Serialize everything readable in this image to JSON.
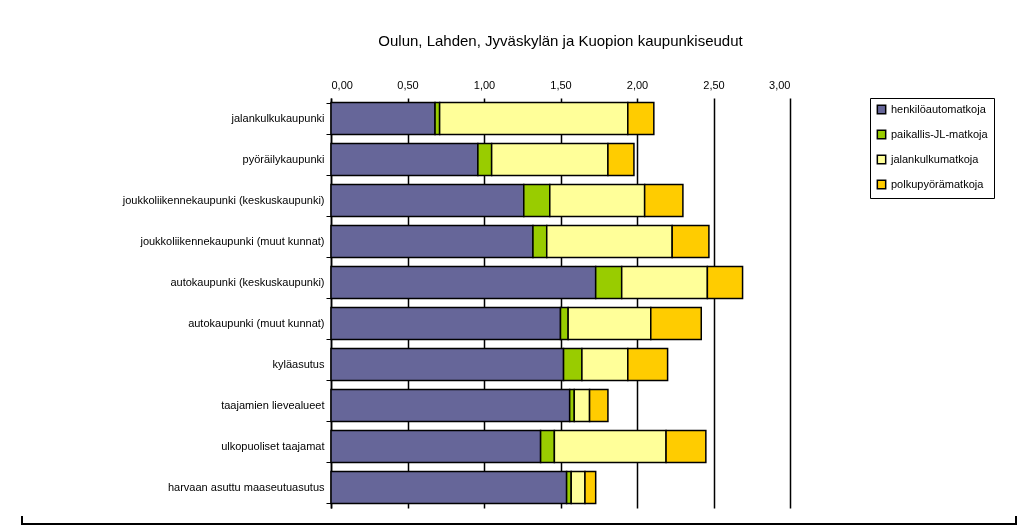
{
  "chart_data": {
    "type": "bar",
    "orientation": "horizontal",
    "stacked": true,
    "title": "Oulun, Lahden, Jyväskylän ja Kuopion kaupunkiseudut",
    "categories": [
      "jalankulkukaupunki",
      "pyöräilykaupunki",
      "joukkoliikennekaupunki (keskuskaupunki)",
      "joukkoliikennekaupunki (muut kunnat)",
      "autokaupunki (keskuskaupunki)",
      "autokaupunki (muut kunnat)",
      "kyläasutus",
      "taajamien lievealueet",
      "ulkopuoliset taajamat",
      "harvaan asuttu maaseutuasutus"
    ],
    "series": [
      {
        "name": "henkilöautomatkoja",
        "color": "#666699",
        "values": [
          0.68,
          0.96,
          1.26,
          1.32,
          1.73,
          1.5,
          1.52,
          1.56,
          1.37,
          1.54
        ]
      },
      {
        "name": "paikallis-JL-matkoja",
        "color": "#99cc00",
        "values": [
          0.03,
          0.09,
          0.17,
          0.09,
          0.17,
          0.05,
          0.12,
          0.03,
          0.09,
          0.03
        ]
      },
      {
        "name": "jalankulkumatkoja",
        "color": "#ffff99",
        "values": [
          1.23,
          0.76,
          0.62,
          0.82,
          0.56,
          0.54,
          0.3,
          0.1,
          0.73,
          0.09
        ]
      },
      {
        "name": "polkupyörämatkoja",
        "color": "#ffcc00",
        "values": [
          0.17,
          0.17,
          0.25,
          0.24,
          0.23,
          0.33,
          0.26,
          0.12,
          0.26,
          0.07
        ]
      }
    ],
    "xlim": [
      0,
      3
    ],
    "xticks": [
      {
        "value": 0,
        "label": "0,00"
      },
      {
        "value": 0.5,
        "label": "0,50"
      },
      {
        "value": 1,
        "label": "1,00"
      },
      {
        "value": 1.5,
        "label": "1,50"
      },
      {
        "value": 2,
        "label": "2,00"
      },
      {
        "value": 2.5,
        "label": "2,50"
      },
      {
        "value": 3,
        "label": "3,00"
      }
    ],
    "grid": "x",
    "legend": "right"
  }
}
